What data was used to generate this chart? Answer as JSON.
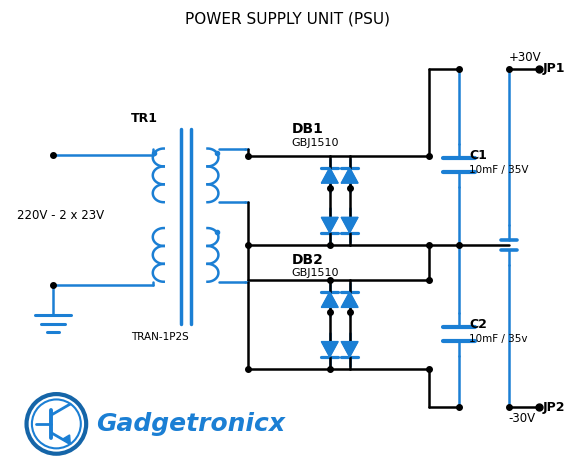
{
  "title": "POWER SUPPLY UNIT (PSU)",
  "title_fontsize": 11,
  "bg_color": "#ffffff",
  "line_color": "#000000",
  "blue_color": "#1b7fd4",
  "text_color_black": "#000000",
  "fig_width": 5.75,
  "fig_height": 4.76,
  "dpi": 100,
  "tr1_label": "TR1",
  "tran_label": "TRAN-1P2S",
  "db1_label": "DB1",
  "db1_part": "GBJ1510",
  "db2_label": "DB2",
  "db2_part": "GBJ1510",
  "c1_label": "C1",
  "c1_val": "10mF / 35V",
  "c2_label": "C2",
  "c2_val": "10mF / 35v",
  "jp1_label": "JP1",
  "jp1_volt": "+30V",
  "jp2_label": "JP2",
  "jp2_volt": "-30V",
  "input_label": "220V - 2 x 23V",
  "logo_text": "Gadgetronicx"
}
